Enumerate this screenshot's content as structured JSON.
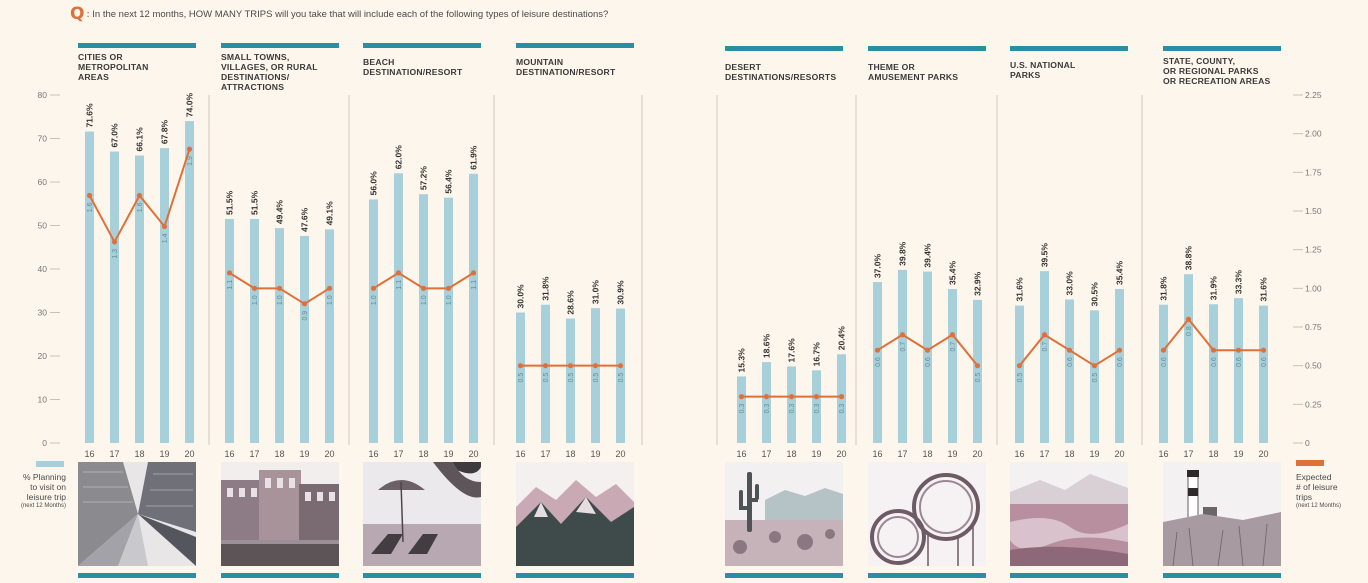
{
  "question": {
    "mark": "Q",
    "text": "In the next 12 months, HOW MANY TRIPS will you take that will include each of the following types of leisure destinations?"
  },
  "colors": {
    "bar": "#a8d0db",
    "line": "#e0703a",
    "accent": "#2a8fa3",
    "background": "#fdf6ec"
  },
  "legend": {
    "left": {
      "label_lines": [
        "% Planning",
        "to visit on",
        "leisure trip"
      ],
      "note": "(next 12 Months)"
    },
    "right": {
      "label_lines": [
        "Expected",
        "# of leisure",
        "trips"
      ],
      "note": "(next 12 Months)"
    }
  },
  "chart_data": {
    "type": "bar",
    "categories": [
      "16",
      "17",
      "18",
      "19",
      "20"
    ],
    "left_axis": {
      "ylim": [
        0,
        80
      ],
      "ticks": [
        "0",
        "10",
        "20",
        "30",
        "40",
        "50",
        "60",
        "70",
        "80"
      ]
    },
    "right_axis": {
      "ylim": [
        0,
        2.25
      ],
      "ticks": [
        "0",
        "0.25",
        "0.50",
        "0.75",
        "1.00",
        "1.25",
        "1.50",
        "1.75",
        "2.00",
        "2.25"
      ]
    },
    "panels": [
      {
        "title_lines": [
          "CITIES OR",
          "METROPOLITAN",
          "AREAS"
        ],
        "photo": "city-skyscrapers",
        "percent": [
          71.6,
          67.0,
          66.1,
          67.8,
          74.0
        ],
        "percent_labels": [
          "71.6%",
          "67.0%",
          "66.1%",
          "67.8%",
          "74.0%"
        ],
        "trips": [
          1.6,
          1.3,
          1.6,
          1.4,
          1.9
        ],
        "trip_labels": [
          "1.6",
          "1.3",
          "1.6",
          "1.4",
          "1.9"
        ]
      },
      {
        "title_lines": [
          "SMALL TOWNS,",
          "VILLAGES, OR RURAL",
          "DESTINATIONS/",
          "ATTRACTIONS"
        ],
        "photo": "small-town-street",
        "percent": [
          51.5,
          51.5,
          49.4,
          47.6,
          49.1
        ],
        "percent_labels": [
          "51.5%",
          "51.5%",
          "49.4%",
          "47.6%",
          "49.1%"
        ],
        "trips": [
          1.1,
          1.0,
          1.0,
          0.9,
          1.0
        ],
        "trip_labels": [
          "1.1",
          "1.0",
          "1.0",
          "0.9",
          "1.0"
        ]
      },
      {
        "title_lines": [
          "BEACH",
          "DESTINATION/RESORT"
        ],
        "photo": "beach-chairs",
        "percent": [
          56.0,
          62.0,
          57.2,
          56.4,
          61.9
        ],
        "percent_labels": [
          "56.0%",
          "62.0%",
          "57.2%",
          "56.4%",
          "61.9%"
        ],
        "trips": [
          1.0,
          1.1,
          1.0,
          1.0,
          1.1
        ],
        "trip_labels": [
          "1.0",
          "1.1",
          "1.0",
          "1.0",
          "1.1"
        ]
      },
      {
        "title_lines": [
          "MOUNTAIN",
          "DESTINATION/RESORT"
        ],
        "photo": "mountains",
        "percent": [
          30.0,
          31.8,
          28.6,
          31.0,
          30.9
        ],
        "percent_labels": [
          "30.0%",
          "31.8%",
          "28.6%",
          "31.0%",
          "30.9%"
        ],
        "trips": [
          0.5,
          0.5,
          0.5,
          0.5,
          0.5
        ],
        "trip_labels": [
          "0.5",
          "0.5",
          "0.5",
          "0.5",
          "0.5"
        ]
      },
      {
        "title_lines": [
          "DESERT",
          "DESTINATIONS/RESORTS"
        ],
        "photo": "desert-cactus",
        "percent": [
          15.3,
          18.6,
          17.6,
          16.7,
          20.4
        ],
        "percent_labels": [
          "15.3%",
          "18.6%",
          "17.6%",
          "16.7%",
          "20.4%"
        ],
        "trips": [
          0.3,
          0.3,
          0.3,
          0.3,
          0.3
        ],
        "trip_labels": [
          "0.3",
          "0.3",
          "0.3",
          "0.3",
          "0.3"
        ]
      },
      {
        "title_lines": [
          "THEME OR",
          "AMUSEMENT PARKS"
        ],
        "photo": "roller-coaster",
        "percent": [
          37.0,
          39.8,
          39.4,
          35.4,
          32.9
        ],
        "percent_labels": [
          "37.0%",
          "39.8%",
          "39.4%",
          "35.4%",
          "32.9%"
        ],
        "trips": [
          0.6,
          0.7,
          0.6,
          0.7,
          0.5
        ],
        "trip_labels": [
          "0.6",
          "0.7",
          "0.6",
          "0.7",
          "0.5"
        ]
      },
      {
        "title_lines": [
          "U.S. NATIONAL",
          "PARKS"
        ],
        "photo": "national-park",
        "percent": [
          31.6,
          39.5,
          33.0,
          30.5,
          35.4
        ],
        "percent_labels": [
          "31.6%",
          "39.5%",
          "33.0%",
          "30.5%",
          "35.4%"
        ],
        "trips": [
          0.5,
          0.7,
          0.6,
          0.5,
          0.6
        ],
        "trip_labels": [
          "0.5",
          "0.7",
          "0.6",
          "0.5",
          "0.6"
        ]
      },
      {
        "title_lines": [
          "STATE, COUNTY,",
          "OR REGIONAL PARKS",
          "OR RECREATION AREAS"
        ],
        "photo": "lighthouse-dunes",
        "percent": [
          31.8,
          38.8,
          31.9,
          33.3,
          31.6
        ],
        "percent_labels": [
          "31.8%",
          "38.8%",
          "31.9%",
          "33.3%",
          "31.6%"
        ],
        "trips": [
          0.6,
          0.8,
          0.6,
          0.6,
          0.6
        ],
        "trip_labels": [
          "0.6",
          "0.8",
          "0.6",
          "0.6",
          "0.6"
        ]
      }
    ]
  }
}
